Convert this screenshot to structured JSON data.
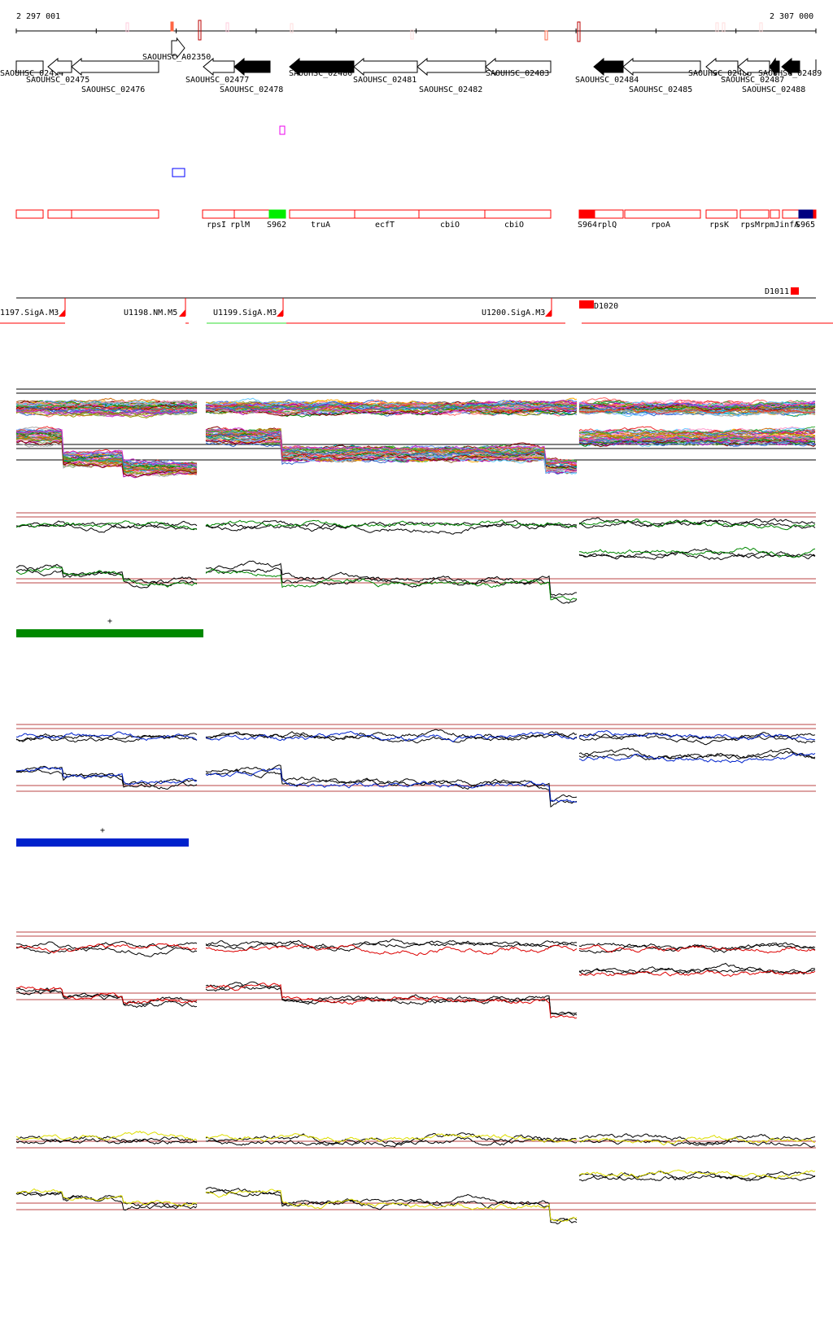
{
  "ruler": {
    "start_label": "2 297 001",
    "end_label": "2 307 000"
  },
  "genes": [
    "SAOUHSC_02474",
    "SAOUHSC_02475",
    "SAOUHSC_02476",
    "SAOUHSC_A02350",
    "SAOUHSC_02477",
    "SAOUHSC_02478",
    "SAOUHSC_02480",
    "SAOUHSC_02481",
    "SAOUHSC_02482",
    "SAOUHSC_02483",
    "SAOUHSC_02484",
    "SAOUHSC_02485",
    "SAOUHSC_02486",
    "SAOUHSC_02487",
    "SAOUHSC_02488",
    "SAOUHSC_02489"
  ],
  "operon_labels": [
    "rpsI",
    "rplM",
    "S962",
    "truA",
    "ecfT",
    "cbiO",
    "cbiO",
    "S964rplQ",
    "rpoA",
    "rpsK",
    "rpsMrpmJinfA",
    "S965"
  ],
  "promoters": [
    "1197.SigA.M3",
    "U1198.NM.M5",
    "U1199.SigA.M3",
    "U1200.SigA.M3",
    "D1011",
    "D1020"
  ],
  "tracks": [
    {
      "name": "multi",
      "color": "#888888"
    },
    {
      "name": "green",
      "color": "#008800",
      "bar_label": "+"
    },
    {
      "name": "blue",
      "color": "#0022cc",
      "bar_label": "+"
    },
    {
      "name": "red",
      "color": "#dd0000"
    },
    {
      "name": "yellow",
      "color": "#dddd00"
    }
  ],
  "colors": {
    "operon": "#ff0000",
    "green_box": "#00ee00",
    "navy_box": "#000080",
    "ref_line": "#aa3333"
  }
}
